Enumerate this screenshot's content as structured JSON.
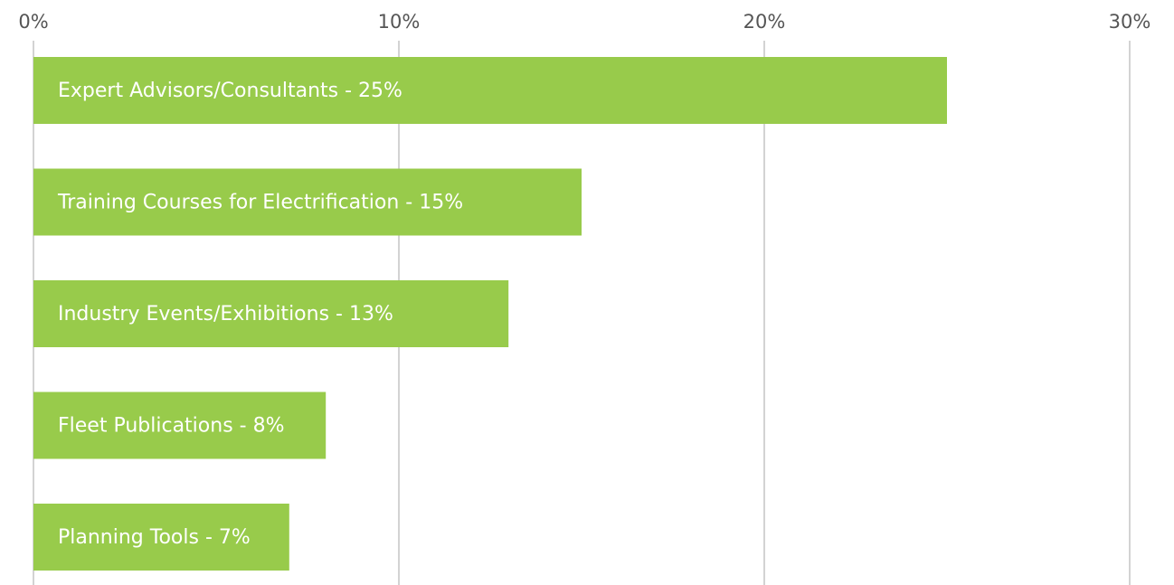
{
  "chart_data": {
    "type": "bar",
    "orientation": "horizontal",
    "categories": [
      "Expert Advisors/Consultants - 25%",
      "Training Courses for Electrification - 15%",
      "Industry Events/Exhibitions - 13%",
      "Fleet Publications - 8%",
      "Planning Tools - 7%"
    ],
    "values": [
      25,
      15,
      13,
      8,
      7
    ],
    "color": "#98cb4b",
    "xlim": [
      0,
      30
    ],
    "xticks": [
      {
        "value": 0,
        "label": "0%"
      },
      {
        "value": 10,
        "label": "10%"
      },
      {
        "value": 20,
        "label": "20%"
      },
      {
        "value": 30,
        "label": "30%"
      }
    ],
    "grid": true
  }
}
